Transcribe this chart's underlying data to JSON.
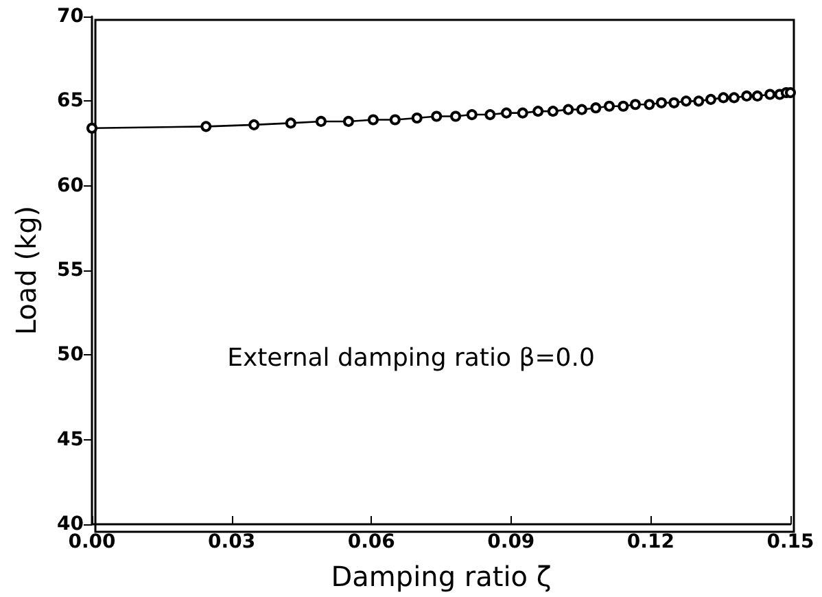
{
  "chart_data": {
    "type": "line",
    "xlabel": "Damping ratio ζ",
    "ylabel": "Load (kg)",
    "annotations": [
      "External damping ratio β=0.0"
    ],
    "x": [
      0,
      0.0245,
      0.0348,
      0.0427,
      0.0492,
      0.0551,
      0.0604,
      0.0651,
      0.0698,
      0.074,
      0.0781,
      0.0816,
      0.0855,
      0.089,
      0.0925,
      0.0958,
      0.099,
      0.1023,
      0.1052,
      0.1082,
      0.1111,
      0.1141,
      0.1167,
      0.1197,
      0.1223,
      0.125,
      0.1276,
      0.1303,
      0.1329,
      0.1356,
      0.1379,
      0.1406,
      0.1429,
      0.1456,
      0.1477,
      0.1491,
      0.15
    ],
    "series": [
      {
        "color": "#000000",
        "values": [
          63.4,
          63.5,
          63.6,
          63.7,
          63.8,
          63.8,
          63.9,
          63.9,
          64.0,
          64.1,
          64.1,
          64.2,
          64.2,
          64.3,
          64.3,
          64.4,
          64.4,
          64.5,
          64.5,
          64.6,
          64.7,
          64.7,
          64.8,
          64.8,
          64.9,
          64.9,
          65.0,
          65.0,
          65.1,
          65.2,
          65.2,
          65.3,
          65.3,
          65.4,
          65.4,
          65.5,
          65.5
        ]
      }
    ],
    "xlim": [
      0,
      0.15
    ],
    "xticks": [
      {
        "value": 0,
        "label": "0.00"
      },
      0.03,
      0.06,
      0.09,
      0.12,
      0.15
    ],
    "ylim": [
      40,
      70
    ],
    "yticks": [
      40,
      45,
      50,
      55,
      60,
      65,
      70
    ],
    "grid": false,
    "marker": "circle",
    "line_style": "solid"
  }
}
